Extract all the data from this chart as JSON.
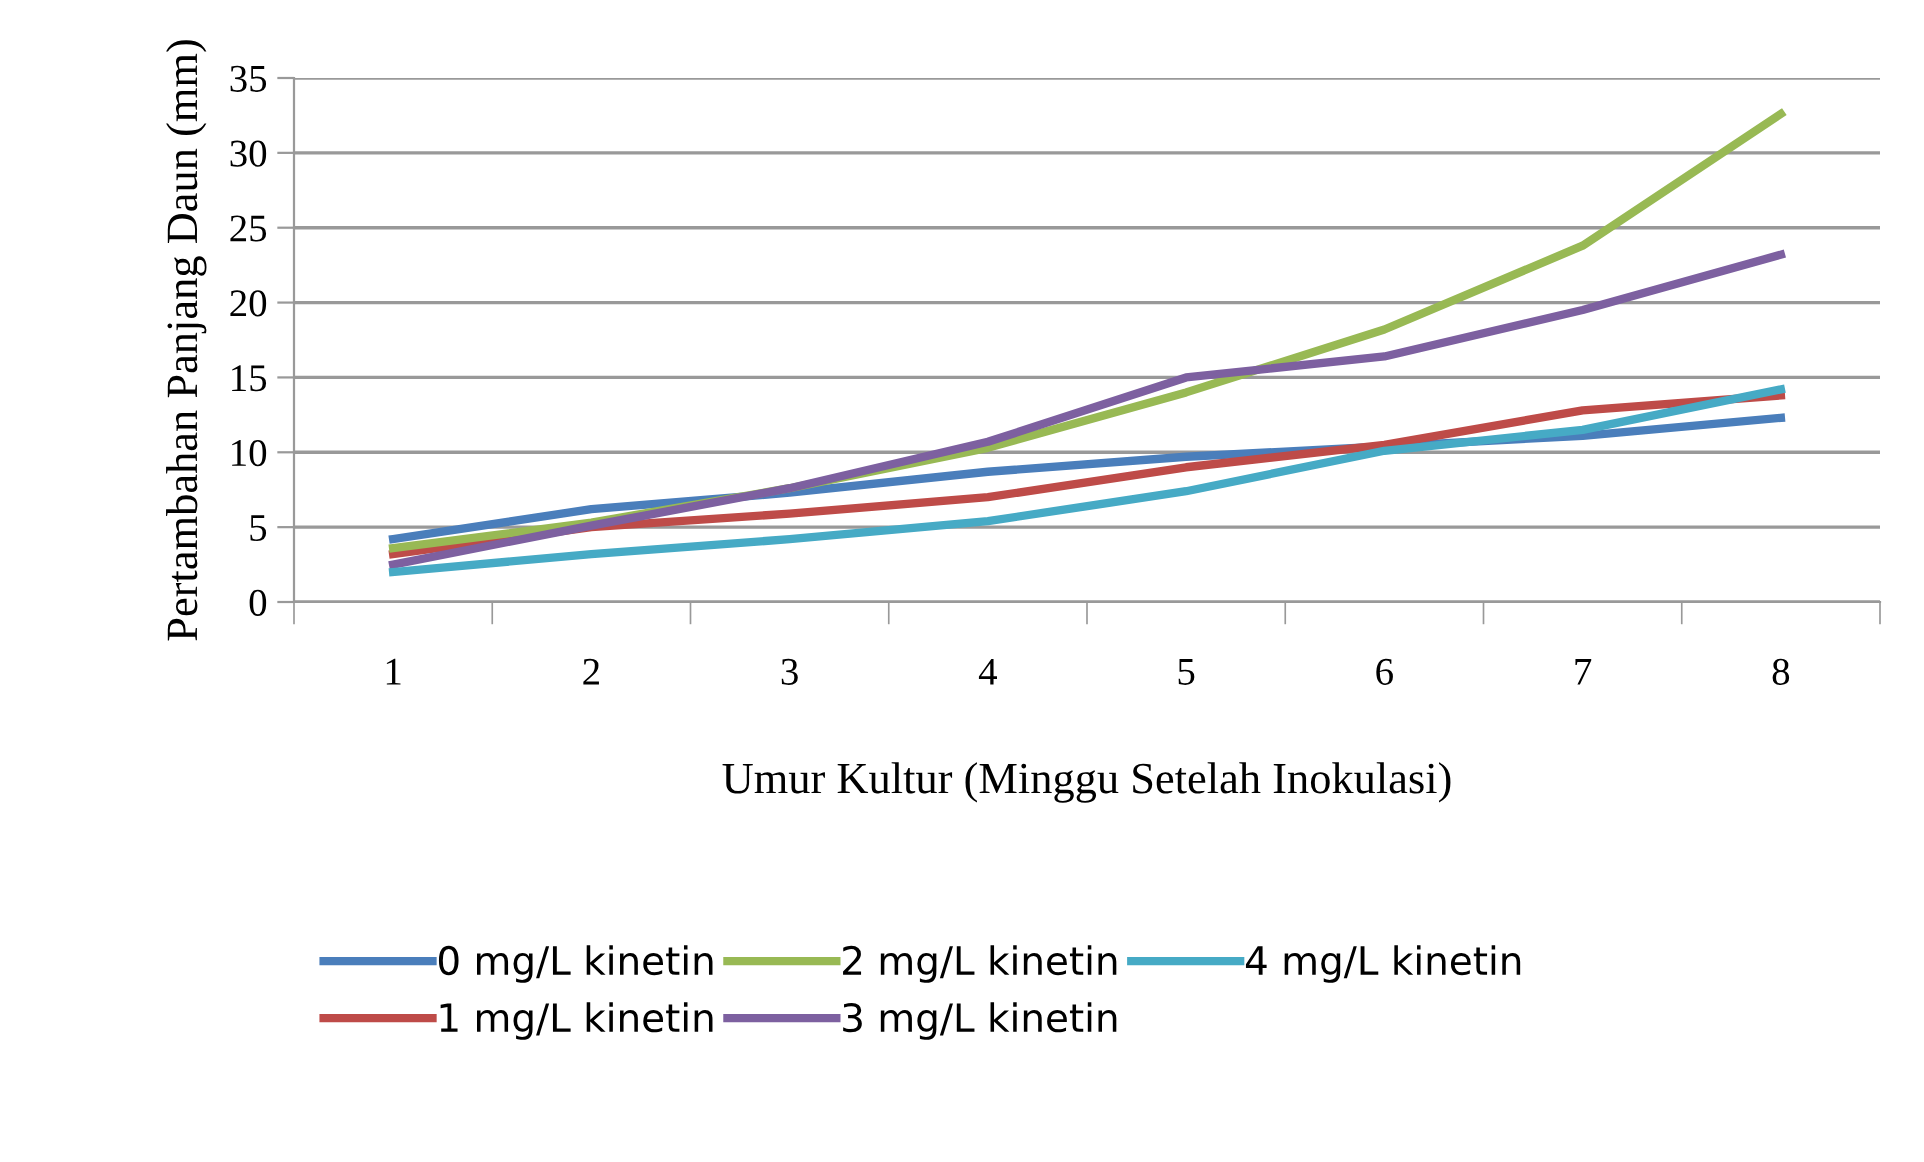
{
  "chart_data": {
    "type": "line",
    "xlabel": "Umur Kultur (Minggu Setelah Inokulasi)",
    "ylabel": "Pertambahan Panjang Daun (mm)",
    "categories": [
      "1",
      "2",
      "3",
      "4",
      "5",
      "6",
      "7",
      "8"
    ],
    "ylim": [
      0,
      35
    ],
    "yticks": [
      0,
      5,
      10,
      15,
      20,
      25,
      30,
      35
    ],
    "grid": "y",
    "legend": "bottom",
    "marker": "none",
    "line_style": "solid",
    "series": [
      {
        "name": "0 mg/L kinetin",
        "color": "#4a7ebb",
        "values": [
          4.2,
          6.2,
          7.3,
          8.7,
          9.7,
          10.4,
          11.1,
          12.3
        ]
      },
      {
        "name": "1 mg/L kinetin",
        "color": "#be4b48",
        "values": [
          3.2,
          5.0,
          5.9,
          7.0,
          9.0,
          10.5,
          12.8,
          13.8
        ]
      },
      {
        "name": "2 mg/L kinetin",
        "color": "#98b954",
        "values": [
          3.6,
          5.3,
          7.6,
          10.3,
          14.0,
          18.2,
          23.8,
          32.6
        ]
      },
      {
        "name": "3 mg/L kinetin",
        "color": "#7d60a0",
        "values": [
          2.5,
          5.1,
          7.6,
          10.7,
          15.0,
          16.4,
          19.5,
          23.2
        ]
      },
      {
        "name": "4 mg/L kinetin",
        "color": "#46aac5",
        "values": [
          2.0,
          3.2,
          4.2,
          5.4,
          7.4,
          10.1,
          11.5,
          14.2
        ]
      }
    ]
  }
}
